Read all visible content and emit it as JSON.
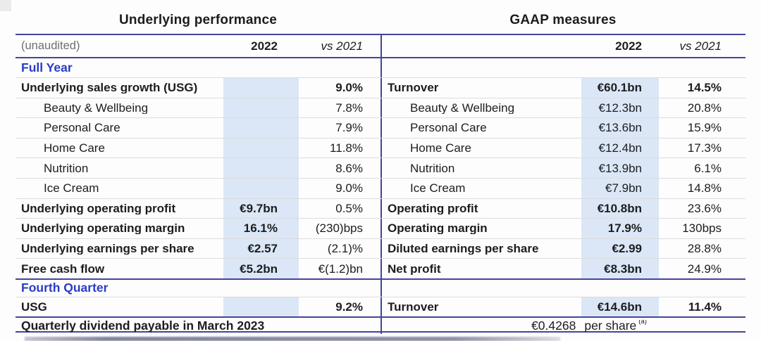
{
  "titles": {
    "left": "Underlying performance",
    "right": "GAAP measures"
  },
  "header": {
    "unaudited": "(unaudited)",
    "year": "2022",
    "vs": "vs 2021"
  },
  "colors": {
    "accent_line": "#44449b",
    "section_heading_blue": "#2a3cc4",
    "highlight_band": "#dbe7f7",
    "row_divider_gray": "#dcdcdc",
    "text": "#1d1d1f",
    "muted_text": "#6f6f72"
  },
  "left": {
    "section_full_year": "Full Year",
    "rows": [
      {
        "label": "Underlying sales growth (USG)",
        "value": "",
        "vs": "9.0%"
      },
      {
        "label": "Beauty & Wellbeing",
        "value": "",
        "vs": "7.8%"
      },
      {
        "label": "Personal Care",
        "value": "",
        "vs": "7.9%"
      },
      {
        "label": "Home Care",
        "value": "",
        "vs": "11.8%"
      },
      {
        "label": "Nutrition",
        "value": "",
        "vs": "8.6%"
      },
      {
        "label": "Ice Cream",
        "value": "",
        "vs": "9.0%"
      },
      {
        "label": "Underlying operating profit",
        "value": "€9.7bn",
        "vs": "0.5%"
      },
      {
        "label": "Underlying operating margin",
        "value": "16.1%",
        "vs": "(230)bps"
      },
      {
        "label": "Underlying earnings per share",
        "value": "€2.57",
        "vs": "(2.1)%"
      },
      {
        "label": "Free cash flow",
        "value": "€5.2bn",
        "vs": "€(1.2)bn"
      }
    ],
    "section_fourth_quarter": "Fourth Quarter",
    "q4_row": {
      "label": "USG",
      "value": "",
      "vs": "9.2%"
    },
    "dividend_label": "Quarterly dividend payable in March 2023"
  },
  "right": {
    "rows": [
      {
        "label": "Turnover",
        "value": "€60.1bn",
        "vs": "14.5%"
      },
      {
        "label": "Beauty & Wellbeing",
        "value": "€12.3bn",
        "vs": "20.8%"
      },
      {
        "label": "Personal Care",
        "value": "€13.6bn",
        "vs": "15.9%"
      },
      {
        "label": "Home Care",
        "value": "€12.4bn",
        "vs": "17.3%"
      },
      {
        "label": "Nutrition",
        "value": "€13.9bn",
        "vs": "6.1%"
      },
      {
        "label": "Ice Cream",
        "value": "€7.9bn",
        "vs": "14.8%"
      },
      {
        "label": "Operating profit",
        "value": "€10.8bn",
        "vs": "23.6%"
      },
      {
        "label": "Operating margin",
        "value": "17.9%",
        "vs": "130bps"
      },
      {
        "label": "Diluted earnings per share",
        "value": "€2.99",
        "vs": "28.8%"
      },
      {
        "label": "Net profit",
        "value": "€8.3bn",
        "vs": "24.9%"
      }
    ],
    "q4_row": {
      "label": "Turnover",
      "value": "€14.6bn",
      "vs": "11.4%"
    },
    "dividend_value": "€0.4268",
    "dividend_unit": "per share",
    "dividend_footnote": "(a)"
  }
}
